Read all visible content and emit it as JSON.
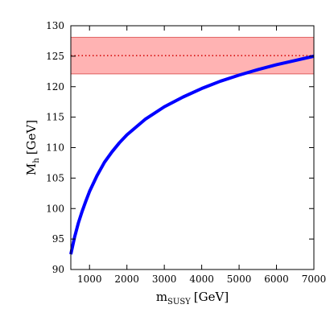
{
  "chart_data": {
    "type": "line",
    "xlabel": "m",
    "xlabel_sub": "SUSY",
    "xlabel_unit": "[GeV]",
    "ylabel": "M",
    "ylabel_sub": "h",
    "ylabel_unit": "[GeV]",
    "xlim": [
      500,
      7000
    ],
    "ylim": [
      90,
      130
    ],
    "x_ticks": [
      1000,
      2000,
      3000,
      4000,
      5000,
      6000,
      7000
    ],
    "y_ticks": [
      90,
      95,
      100,
      105,
      110,
      115,
      120,
      125,
      130
    ],
    "grid": false,
    "series": [
      {
        "color": "#0000ff",
        "x": [
          500,
          600,
          700,
          800,
          900,
          1000,
          1200,
          1400,
          1600,
          1800,
          2000,
          2500,
          3000,
          3500,
          4000,
          4500,
          5000,
          5500,
          6000,
          6500,
          7000
        ],
        "y": [
          92.5,
          95.3,
          97.6,
          99.5,
          101.2,
          102.8,
          105.4,
          107.6,
          109.3,
          110.8,
          112.1,
          114.7,
          116.7,
          118.3,
          119.7,
          120.9,
          121.9,
          122.8,
          123.6,
          124.3,
          125.0
        ]
      }
    ],
    "reference_line": {
      "y": 125.1,
      "color": "#d40000",
      "style": "dotted"
    },
    "reference_band": {
      "y_range": [
        122.1,
        128.1
      ],
      "color": "#ff9999"
    }
  }
}
